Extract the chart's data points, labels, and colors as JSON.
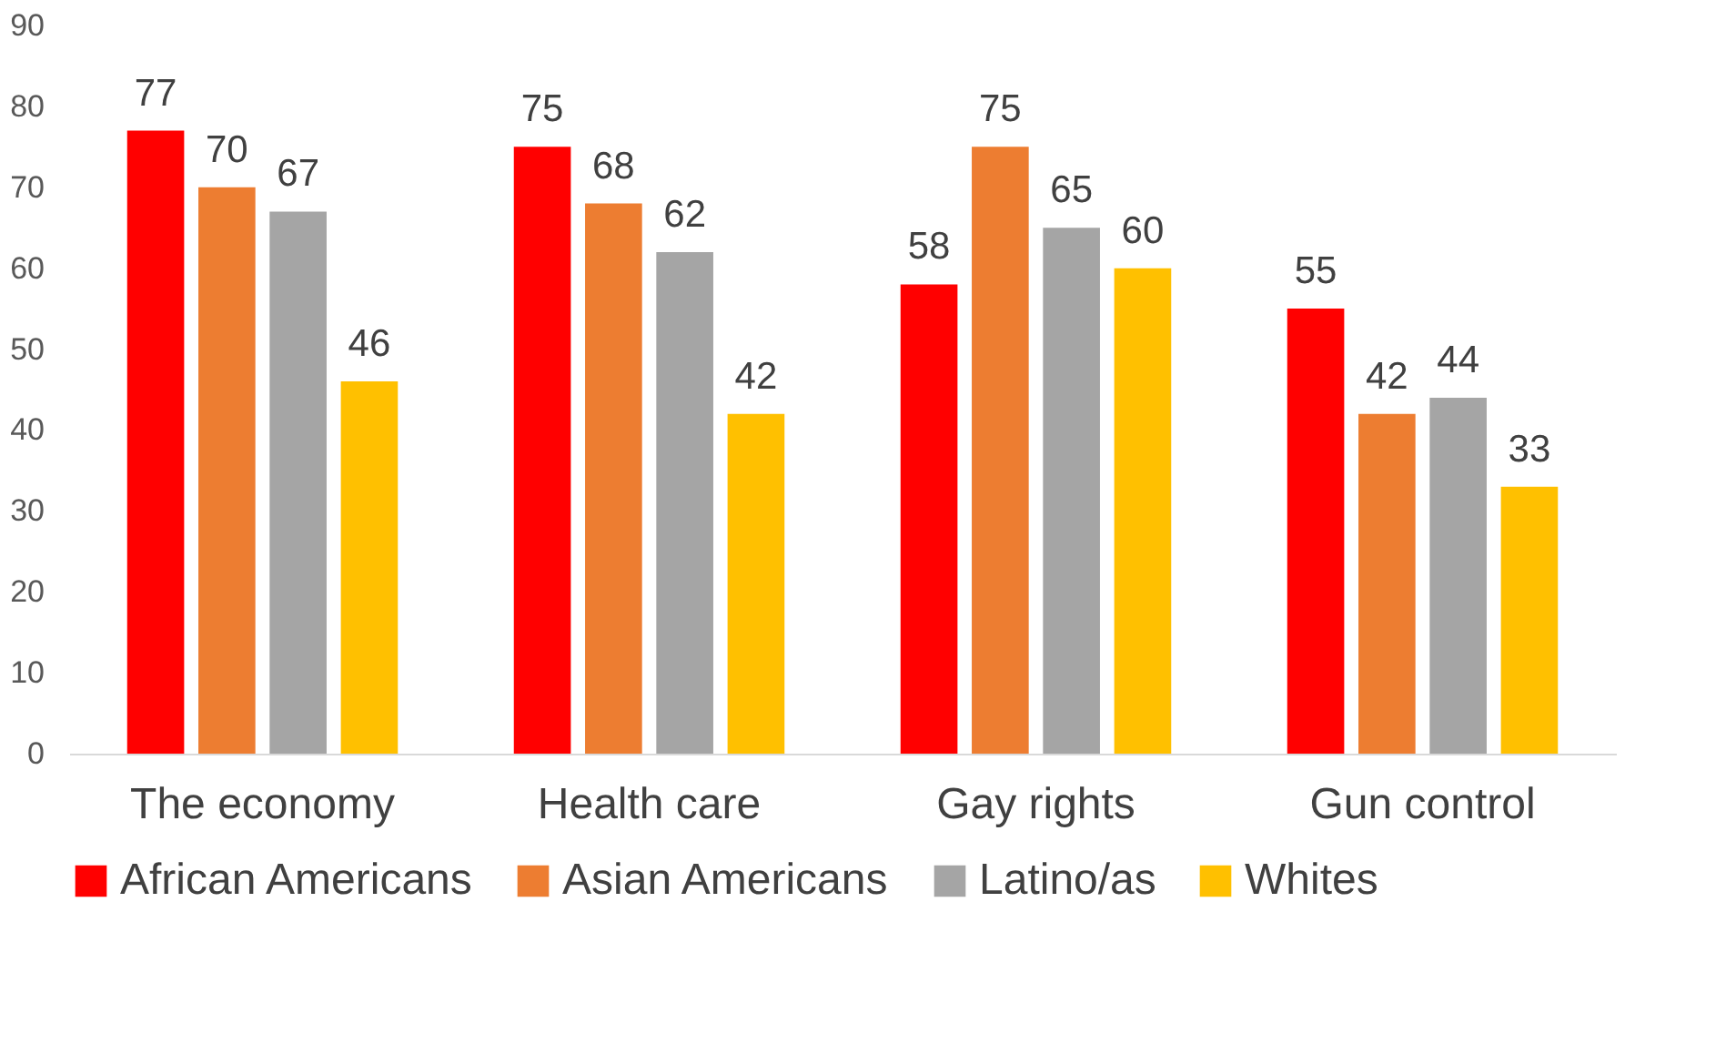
{
  "chart_data": {
    "type": "bar",
    "categories": [
      "The economy",
      "Health care",
      "Gay rights",
      "Gun control"
    ],
    "series": [
      {
        "name": "African Americans",
        "color": "#ff0000",
        "values": [
          77,
          75,
          58,
          55
        ]
      },
      {
        "name": "Asian Americans",
        "color": "#ed7d31",
        "values": [
          70,
          68,
          75,
          42
        ]
      },
      {
        "name": "Latino/as",
        "color": "#a5a5a5",
        "values": [
          67,
          62,
          65,
          44
        ]
      },
      {
        "name": "Whites",
        "color": "#ffc000",
        "values": [
          46,
          42,
          60,
          33
        ]
      }
    ],
    "ylim": [
      0,
      90
    ],
    "yticks": [
      0,
      10,
      20,
      30,
      40,
      50,
      60,
      70,
      80,
      90
    ],
    "data_labels": true,
    "grid": false,
    "legend": "bottom"
  }
}
